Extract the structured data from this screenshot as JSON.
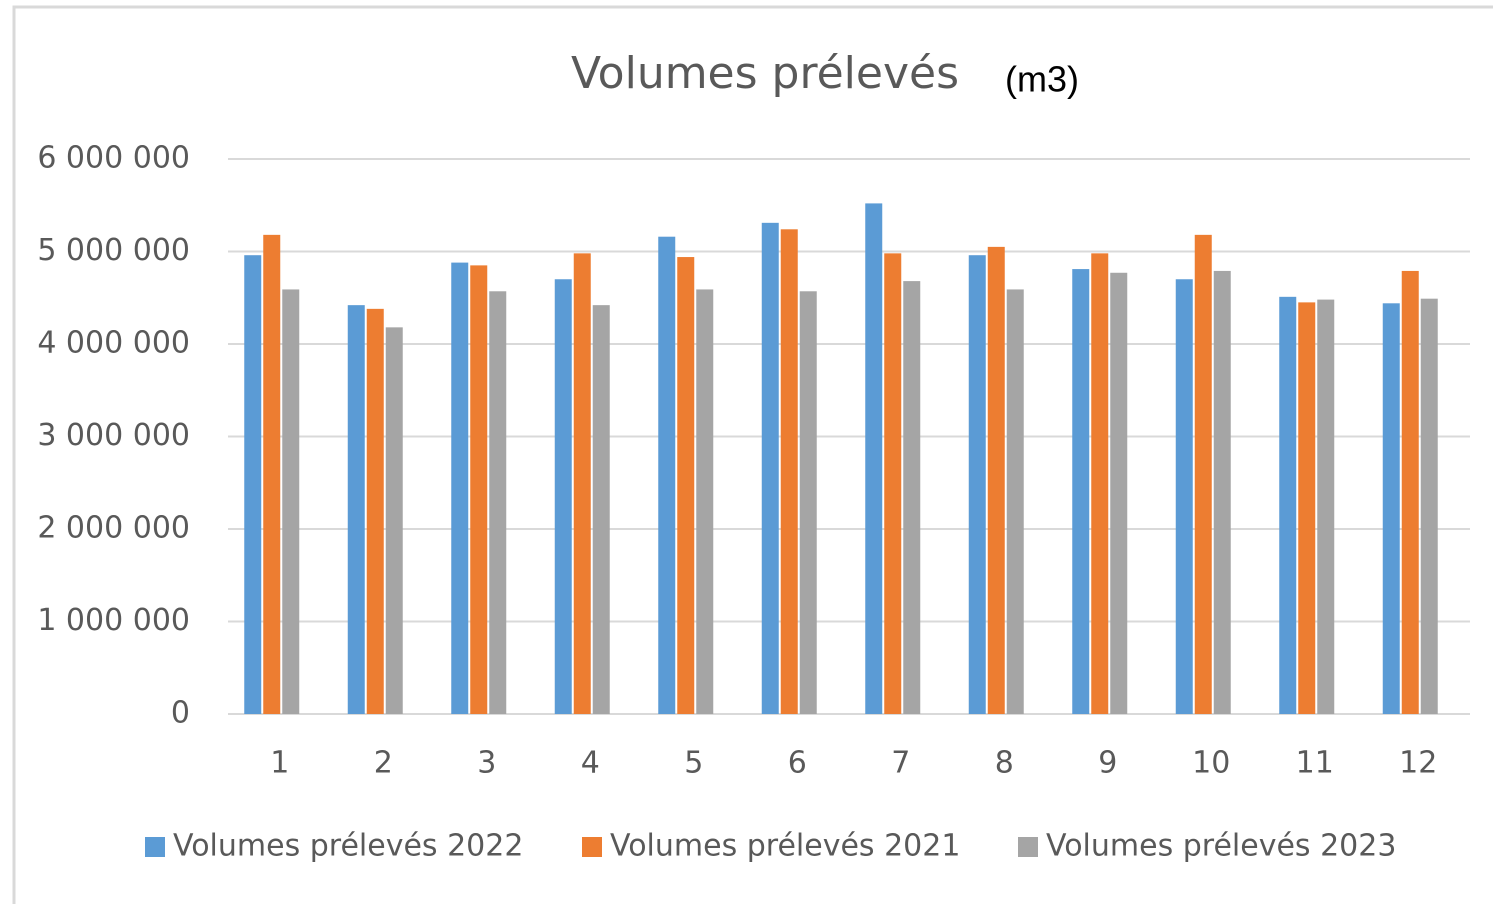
{
  "chart_data": {
    "type": "bar",
    "title": "Volumes prélevés",
    "annotation": "(m3)",
    "categories": [
      "1",
      "2",
      "3",
      "4",
      "5",
      "6",
      "7",
      "8",
      "9",
      "10",
      "11",
      "12"
    ],
    "series": [
      {
        "name": "Volumes prélevés 2022",
        "color": "#5b9bd5",
        "values": [
          4960000,
          4420000,
          4880000,
          4700000,
          5160000,
          5310000,
          5520000,
          4960000,
          4810000,
          4700000,
          4510000,
          4440000
        ]
      },
      {
        "name": "Volumes prélevés 2021",
        "color": "#ed7d31",
        "values": [
          5180000,
          4380000,
          4850000,
          4980000,
          4940000,
          5240000,
          4980000,
          5050000,
          4980000,
          5180000,
          4450000,
          4790000
        ]
      },
      {
        "name": "Volumes prélevés 2023",
        "color": "#a5a5a5",
        "values": [
          4590000,
          4180000,
          4570000,
          4420000,
          4590000,
          4570000,
          4680000,
          4590000,
          4770000,
          4790000,
          4480000,
          4490000
        ]
      }
    ],
    "ylim": [
      0,
      6000000
    ],
    "yticks": [
      {
        "value": 0,
        "label": "0"
      },
      {
        "value": 1000000,
        "label": "1 000 000"
      },
      {
        "value": 2000000,
        "label": "2 000 000"
      },
      {
        "value": 3000000,
        "label": "3 000 000"
      },
      {
        "value": 4000000,
        "label": "4 000 000"
      },
      {
        "value": 5000000,
        "label": "5 000 000"
      },
      {
        "value": 6000000,
        "label": "6 000 000"
      }
    ],
    "grid": true,
    "legend": "bottom"
  }
}
